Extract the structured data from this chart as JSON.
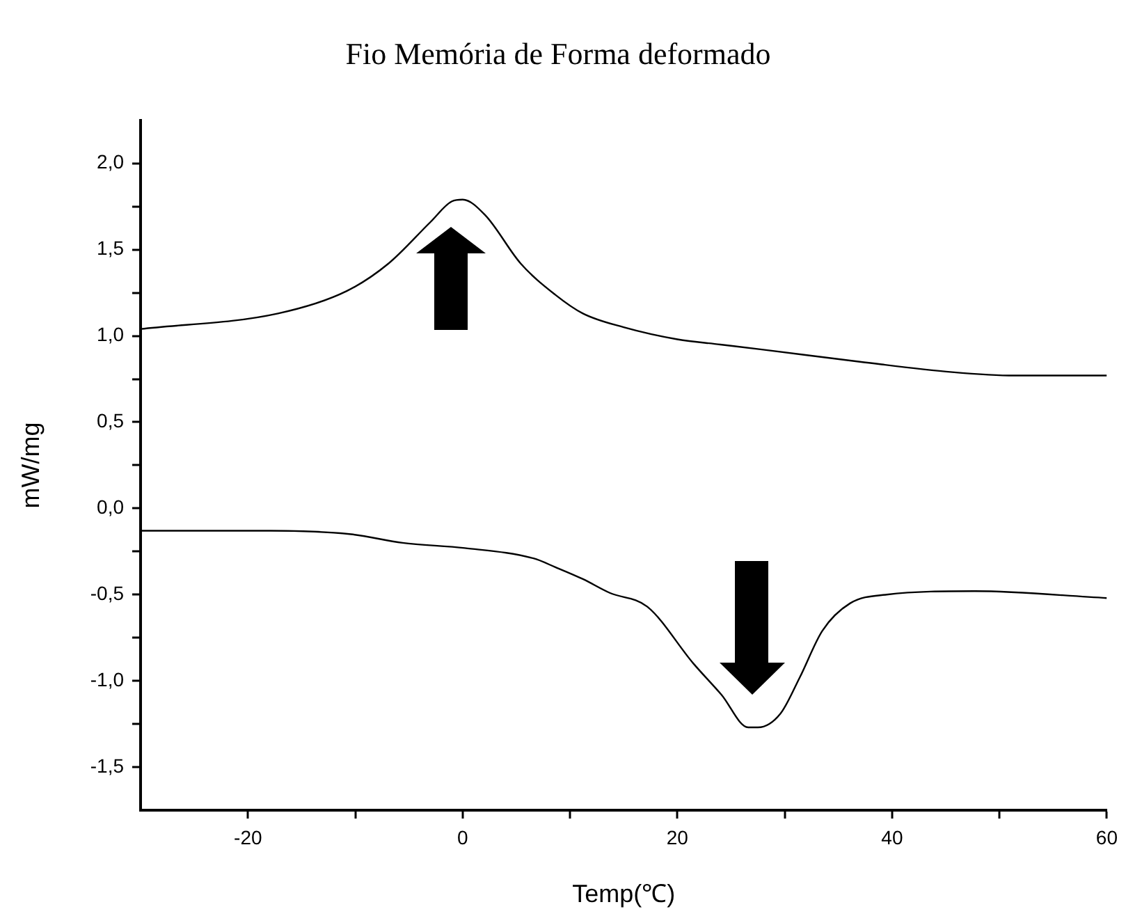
{
  "chart_data": {
    "type": "line",
    "title": "Fio Memória de Forma deformado",
    "xlabel": "Temp(℃)",
    "ylabel": "mW/mg",
    "xlim": [
      -30,
      60
    ],
    "xticks": [
      -20,
      {
        "value": -10,
        "label": null
      },
      0,
      {
        "value": 10,
        "label": null
      },
      20,
      {
        "value": 30,
        "label": null
      },
      40,
      {
        "value": 50,
        "label": null
      },
      60
    ],
    "ylim": [
      -1.75,
      2.25
    ],
    "yticks": [
      {
        "value": -1.5,
        "label": "-1,5"
      },
      {
        "value": -1.25,
        "label": null
      },
      {
        "value": -1,
        "label": "-1,0"
      },
      {
        "value": -0.75,
        "label": null
      },
      {
        "value": -0.5,
        "label": "-0,5"
      },
      {
        "value": -0.25,
        "label": null
      },
      {
        "value": 0,
        "label": "0,0"
      },
      {
        "value": 0.25,
        "label": null
      },
      {
        "value": 0.5,
        "label": "0,5"
      },
      {
        "value": 0.75,
        "label": null
      },
      {
        "value": 1,
        "label": "1,0"
      },
      {
        "value": 1.25,
        "label": null
      },
      {
        "value": 1.5,
        "label": "1,5"
      },
      {
        "value": 1.75,
        "label": null
      },
      {
        "value": 2,
        "label": "2,0"
      }
    ],
    "grid": false,
    "legend": false,
    "marker": "none",
    "line_style": "solid",
    "series": [
      {
        "color": "#000000",
        "x": [
          -30,
          -17.2,
          -10.8,
          -6.9,
          -3,
          -1,
          0,
          2.1,
          5.4,
          8.6,
          11.2,
          15,
          20,
          24,
          28,
          37,
          45.6,
          51.4,
          60
        ],
        "values": [
          1.04,
          1.13,
          1.26,
          1.42,
          1.66,
          1.78,
          1.79,
          1.7,
          1.42,
          1.24,
          1.13,
          1.05,
          0.98,
          0.95,
          0.92,
          0.85,
          0.79,
          0.77,
          0.77
        ]
      },
      {
        "color": "#000000",
        "x": [
          -30,
          -17.9,
          -10.4,
          -5.6,
          0.2,
          6.6,
          8.6,
          11.2,
          13.7,
          17.2,
          21.5,
          24.1,
          26.6,
          27.5,
          29.6,
          31.4,
          33.5,
          36.1,
          39.5,
          47.7,
          60
        ],
        "values": [
          -0.13,
          -0.13,
          -0.15,
          -0.2,
          -0.23,
          -0.29,
          -0.34,
          -0.41,
          -0.49,
          -0.57,
          -0.9,
          -1.08,
          -1.27,
          -1.27,
          -1.19,
          -0.98,
          -0.71,
          -0.55,
          -0.5,
          -0.48,
          -0.52
        ]
      }
    ]
  }
}
